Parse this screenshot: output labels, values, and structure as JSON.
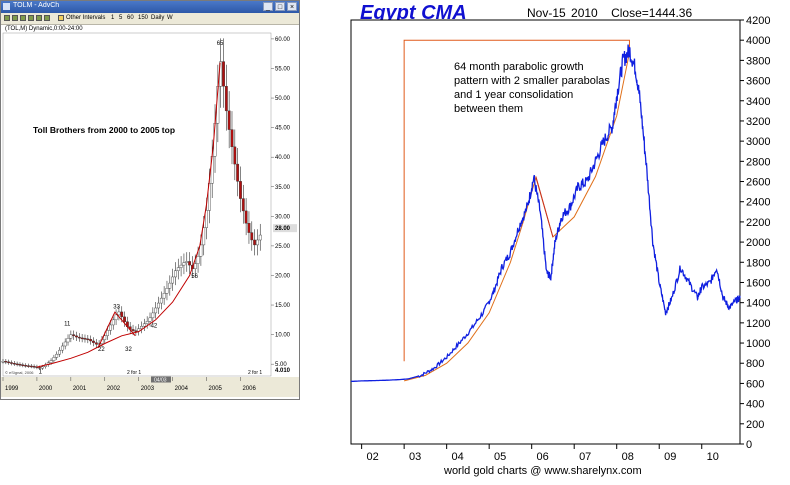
{
  "left_window": {
    "title": "TOLM - AdvCh",
    "window_buttons": [
      "_",
      "□",
      "×"
    ],
    "toolbar": {
      "intervals_label": "Other Intervals",
      "interval_options": [
        "1",
        "5",
        "60",
        "150",
        "Daily",
        "W"
      ]
    },
    "chart_header": "(TOL,M) Dynamic,0:00-24:00",
    "copyright": "© eSignal, 2006",
    "footer_markers": [
      "2 for 1",
      "2 for 1"
    ],
    "crosshair_label": "04/03",
    "price_tags": [
      "28.00",
      "4.010"
    ]
  },
  "right_header": {
    "title": "Egypt CMA",
    "date": "Nov-15  2010",
    "close": "Close=1444.36"
  },
  "annotation": {
    "lines": [
      "64 month parabolic growth",
      "pattern with 2 smaller parabolas",
      "and 1 year consolidation",
      "between them"
    ]
  },
  "source": "world gold charts @ www.sharelynx.com",
  "chart_data": [
    {
      "type": "line",
      "title": "Toll Brothers from 2000 to 2005 top",
      "x_ticks": [
        "1999",
        "2000",
        "2001",
        "2002",
        "2003",
        "2004",
        "2005",
        "2006"
      ],
      "y_ticks": [
        5.0,
        10.0,
        15.0,
        20.0,
        25.0,
        30.0,
        35.0,
        40.0,
        45.0,
        50.0,
        55.0,
        60.0
      ],
      "ylim": [
        3,
        61
      ],
      "xlim": [
        1999.0,
        2006.9
      ],
      "series": [
        {
          "x": [
            1999.0,
            1999.3,
            1999.6,
            1999.9,
            2000.1,
            2000.4,
            2000.6,
            2000.8,
            2001.0,
            2001.2,
            2001.5,
            2001.8,
            2002.0,
            2002.2,
            2002.4,
            2002.7,
            2002.9,
            2003.1,
            2003.3,
            2003.6,
            2003.9,
            2004.1,
            2004.4,
            2004.6,
            2004.8,
            2005.0,
            2005.2,
            2005.4,
            2005.6,
            2005.8,
            2006.0,
            2006.2,
            2006.4,
            2006.6
          ],
          "y": [
            5.5,
            5.1,
            4.8,
            4.6,
            4.3,
            5.5,
            6.8,
            8.5,
            10.0,
            9.5,
            9.2,
            8.2,
            9.8,
            12.0,
            14.0,
            11.0,
            10.5,
            11.5,
            12.5,
            15.5,
            18.5,
            21.0,
            22.5,
            21.0,
            24.0,
            31.0,
            42.0,
            57.0,
            47.0,
            40.0,
            33.0,
            28.0,
            25.0,
            27.0
          ]
        }
      ],
      "parabola": {
        "x": [
          2000.0,
          2000.5,
          2001.0,
          2001.5,
          2002.0,
          2002.5,
          2003.0,
          2003.5,
          2004.0,
          2004.5,
          2004.8,
          2005.0,
          2005.2,
          2005.4
        ],
        "y": [
          4.5,
          5.2,
          6.0,
          7.0,
          8.5,
          9.8,
          10.5,
          12.5,
          15.5,
          20.0,
          25.0,
          32.0,
          42.0,
          56.0
        ]
      },
      "v_segment": {
        "x": [
          2001.8,
          2002.3,
          2002.9
        ],
        "y": [
          7.8,
          13.8,
          9.8
        ]
      },
      "labels": [
        {
          "text": "1",
          "x": 2000.05,
          "y": 3.4
        },
        {
          "text": "11",
          "x": 2000.8,
          "y": 11.5
        },
        {
          "text": "22",
          "x": 2001.8,
          "y": 7.2
        },
        {
          "text": "33",
          "x": 2002.25,
          "y": 14.4
        },
        {
          "text": "32",
          "x": 2002.6,
          "y": 7.2
        },
        {
          "text": "42",
          "x": 2003.35,
          "y": 11.2
        },
        {
          "text": "56",
          "x": 2004.55,
          "y": 19.6
        },
        {
          "text": "65",
          "x": 2005.3,
          "y": 59.0
        }
      ]
    },
    {
      "type": "line",
      "x_ticks": [
        "02",
        "03",
        "04",
        "05",
        "06",
        "07",
        "08",
        "09",
        "10"
      ],
      "y_ticks": [
        0,
        200,
        400,
        600,
        800,
        1000,
        1200,
        1400,
        1600,
        1800,
        2000,
        2200,
        2400,
        2600,
        2800,
        3000,
        3200,
        3400,
        3600,
        3800,
        4000,
        4200
      ],
      "ylim": [
        0,
        4200
      ],
      "xlim": [
        2001.75,
        2010.9
      ],
      "series": [
        {
          "x": [
            2001.75,
            2002.0,
            2002.3,
            2002.6,
            2002.9,
            2003.1,
            2003.4,
            2003.7,
            2004.0,
            2004.3,
            2004.6,
            2004.9,
            2005.1,
            2005.3,
            2005.5,
            2005.7,
            2005.9,
            2006.05,
            2006.2,
            2006.35,
            2006.45,
            2006.55,
            2006.7,
            2006.9,
            2007.1,
            2007.3,
            2007.5,
            2007.7,
            2007.9,
            2008.0,
            2008.15,
            2008.3,
            2008.45,
            2008.55,
            2008.7,
            2008.85,
            2009.0,
            2009.15,
            2009.3,
            2009.5,
            2009.7,
            2009.9,
            2010.0,
            2010.2,
            2010.35,
            2010.5,
            2010.65,
            2010.8,
            2010.9
          ],
          "y": [
            620,
            625,
            628,
            632,
            638,
            645,
            680,
            750,
            860,
            1000,
            1150,
            1330,
            1500,
            1750,
            1900,
            2150,
            2350,
            2640,
            2300,
            1700,
            1650,
            2000,
            2250,
            2350,
            2550,
            2600,
            2800,
            3000,
            3150,
            3450,
            3800,
            3900,
            3700,
            3400,
            2750,
            2000,
            1600,
            1300,
            1450,
            1750,
            1600,
            1450,
            1550,
            1600,
            1750,
            1450,
            1350,
            1420,
            1444
          ]
        }
      ],
      "parabola": {
        "x": [
          2003.0,
          2003.5,
          2004.0,
          2004.5,
          2005.0,
          2005.5,
          2005.8,
          2006.1,
          2006.5,
          2007.0,
          2007.5,
          2008.0,
          2008.3
        ],
        "y": [
          625,
          680,
          800,
          1000,
          1300,
          1800,
          2200,
          2640,
          2050,
          2250,
          2650,
          3250,
          3880
        ]
      },
      "v_segment": {
        "x": [
          2006.1,
          2006.5
        ],
        "y": [
          2650,
          2050
        ]
      },
      "bracket": {
        "x0": 2003.0,
        "x1": 2008.3,
        "y_top": 4000,
        "y_bottom": 820
      }
    }
  ]
}
